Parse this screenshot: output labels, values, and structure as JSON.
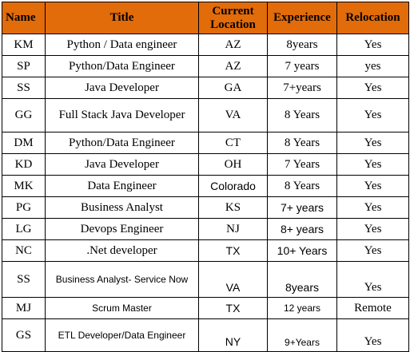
{
  "headers": {
    "name": "Name",
    "title": "Title",
    "location_line1": "Current",
    "location_line2": "Location",
    "experience": "Experience",
    "relocation": "Relocation"
  },
  "rows": [
    {
      "name": "KM",
      "title": "Python / Data engineer",
      "location": "AZ",
      "experience": "8years",
      "relocation": "Yes"
    },
    {
      "name": "SP",
      "title": "Python/Data Engineer",
      "location": "AZ",
      "experience": "7 years",
      "relocation": "yes"
    },
    {
      "name": "SS",
      "title": "Java Developer",
      "location": "GA",
      "experience": "7+years",
      "relocation": "Yes"
    },
    {
      "name": "GG",
      "title": "Full Stack Java Developer",
      "location": "VA",
      "experience": "8 Years",
      "relocation": "Yes"
    },
    {
      "name": "DM",
      "title": "Python/Data Engineer",
      "location": "CT",
      "experience": "8 Years",
      "relocation": "Yes"
    },
    {
      "name": "KD",
      "title": "Java Developer",
      "location": "OH",
      "experience": "7 Years",
      "relocation": "Yes"
    },
    {
      "name": "MK",
      "title": "Data Engineer",
      "location": "Colorado",
      "experience": "8 Years",
      "relocation": "Yes"
    },
    {
      "name": "PG",
      "title": "Business Analyst",
      "location": "KS",
      "experience": "7+ years",
      "relocation": "Yes"
    },
    {
      "name": "LG",
      "title": "Devops Engineer",
      "location": "NJ",
      "experience": "8+ years",
      "relocation": "Yes"
    },
    {
      "name": "NC",
      "title": ".Net developer",
      "location": "TX",
      "experience": "10+ Years",
      "relocation": "Yes"
    },
    {
      "name": "SS",
      "title": "Business Analyst- Service Now",
      "location": "VA",
      "experience": "8years",
      "relocation": "Yes"
    },
    {
      "name": "MJ",
      "title": "Scrum Master",
      "location": "TX",
      "experience": "12 years",
      "relocation": "Remote"
    },
    {
      "name": "GS",
      "title": "ETL Developer/Data Engineer",
      "location": "NY",
      "experience": "9+Years",
      "relocation": "Yes"
    }
  ]
}
